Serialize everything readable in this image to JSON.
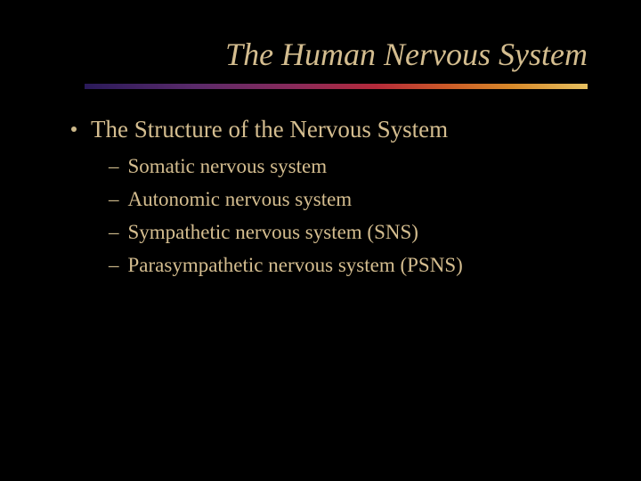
{
  "slide": {
    "title": "The Human Nervous System",
    "title_color": "#d4bd8f",
    "title_fontsize": 36,
    "title_style": "italic",
    "background_color": "#000000",
    "text_color": "#d4bd8f",
    "divider_gradient": [
      "#2a1a5a",
      "#5a2a6a",
      "#8a2a5a",
      "#b52a3a",
      "#cc5a28",
      "#d98a2a",
      "#e6c060"
    ],
    "bullets": [
      {
        "text": "The Structure of the Nervous System",
        "fontsize": 27,
        "subitems": [
          {
            "text": "Somatic nervous system",
            "fontsize": 23
          },
          {
            "text": "Autonomic nervous system",
            "fontsize": 23
          },
          {
            "text": "Sympathetic nervous system (SNS)",
            "fontsize": 23
          },
          {
            "text": "Parasympathetic nervous system (PSNS)",
            "fontsize": 23
          }
        ]
      }
    ]
  }
}
